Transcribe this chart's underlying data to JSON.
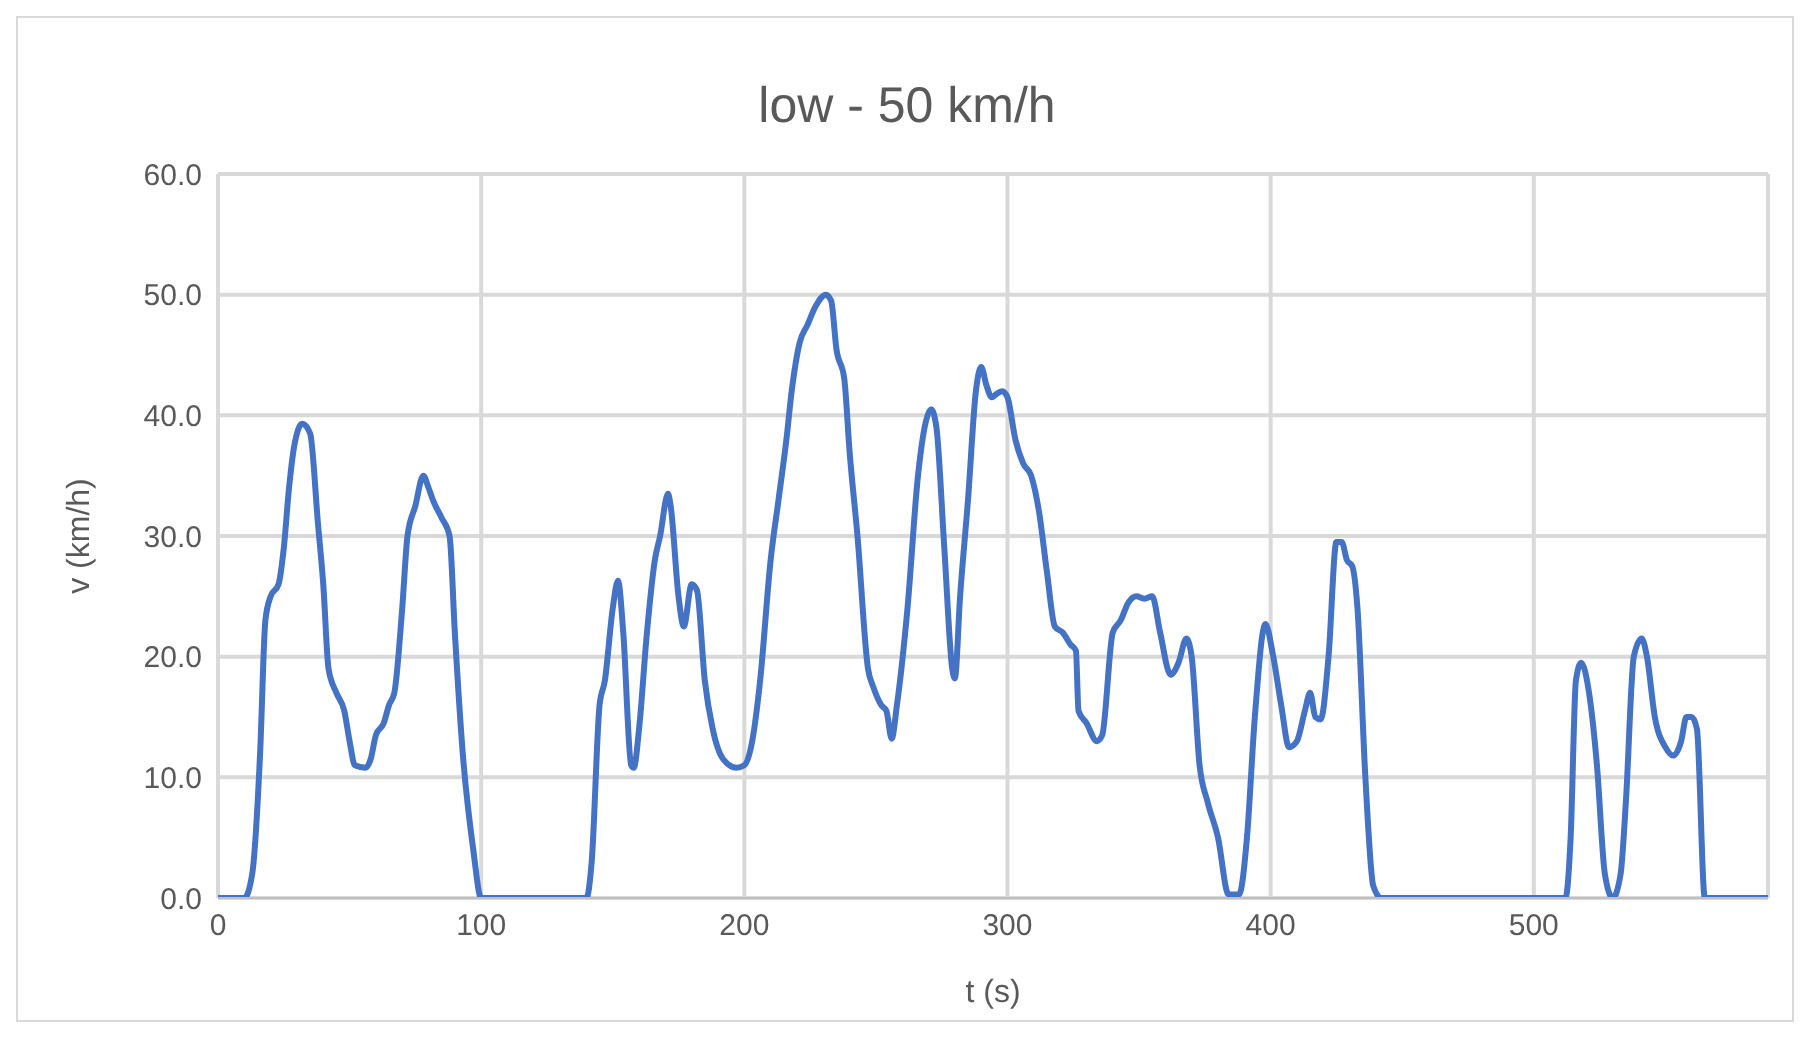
{
  "chart_data": {
    "type": "line",
    "title": "low - 50 km/h",
    "xlabel": "t (s)",
    "ylabel": "v (km/h)",
    "x": [
      0,
      10,
      13,
      16,
      18,
      20,
      23,
      25,
      27,
      29,
      32,
      35,
      38,
      40,
      42,
      45,
      48,
      50,
      52,
      56,
      58,
      60,
      63,
      65,
      67,
      70,
      72,
      75,
      78,
      80,
      82,
      85,
      88,
      90,
      93,
      97,
      100,
      140,
      142,
      145,
      147,
      150,
      152,
      154,
      157,
      158,
      160,
      163,
      166,
      168,
      171,
      172,
      175,
      177,
      180,
      182,
      185,
      188,
      192,
      197,
      200,
      203,
      206,
      210,
      213,
      216,
      218,
      221,
      224,
      227,
      231,
      233,
      235,
      238,
      240,
      243,
      247,
      249,
      252,
      254,
      256,
      258,
      262,
      266,
      269,
      271,
      273,
      276,
      279,
      280,
      282,
      285,
      288,
      290,
      292,
      294,
      296,
      298,
      300,
      303,
      306,
      309,
      312,
      315,
      318,
      321,
      324,
      326,
      327,
      330,
      334,
      336,
      340,
      343,
      346,
      349,
      352,
      355,
      358,
      362,
      365,
      368,
      370,
      373,
      376,
      380,
      384,
      388,
      391,
      394,
      398,
      401,
      404,
      407,
      410,
      413,
      415,
      417,
      419,
      422,
      425,
      427,
      429,
      431,
      433,
      436,
      439,
      442,
      512,
      514,
      516,
      518,
      521,
      524,
      527,
      530,
      533,
      535,
      538,
      541,
      543,
      546,
      550,
      553,
      556,
      558,
      560,
      562,
      565,
      589
    ],
    "series": [
      {
        "color": "#4472c4",
        "values": [
          0,
          0,
          2,
          12,
          23,
          25,
          26,
          29,
          34,
          37.5,
          39.3,
          38.5,
          31,
          26,
          19,
          17,
          15.5,
          13,
          11,
          10.8,
          11.5,
          13.5,
          14.5,
          16,
          17,
          24,
          30,
          32.5,
          35,
          34,
          32.8,
          31.5,
          30,
          22,
          12,
          4,
          0,
          0,
          3,
          16,
          18,
          24,
          26.3,
          22,
          11,
          10.8,
          14,
          22,
          28,
          30,
          33.5,
          32.5,
          25,
          22.5,
          26,
          25.5,
          18,
          14,
          11.5,
          10.8,
          11,
          13,
          18,
          28,
          33,
          38,
          42,
          46,
          47.5,
          49,
          50,
          49.5,
          45.5,
          43,
          37,
          30,
          19,
          17.5,
          16,
          15.5,
          13.2,
          16,
          24,
          35,
          39.5,
          40.5,
          39,
          29,
          19,
          18.2,
          25,
          33,
          42,
          44,
          42.5,
          41.5,
          41.8,
          42,
          41.5,
          38,
          36,
          35,
          32,
          27,
          22.5,
          22,
          21,
          20.5,
          15.5,
          14.5,
          13,
          13.5,
          22,
          23,
          24.5,
          25,
          24.8,
          25,
          22,
          18.5,
          19.5,
          21.5,
          20,
          11,
          8,
          5,
          0.3,
          0.3,
          5,
          15,
          22.7,
          20,
          16,
          12.5,
          13,
          15.5,
          17,
          15,
          14.8,
          20,
          29.5,
          29.5,
          28,
          27.5,
          24,
          10,
          1,
          0,
          0,
          5,
          18,
          19.5,
          17,
          11,
          2,
          0,
          2,
          8,
          20,
          21.5,
          20,
          15,
          12.5,
          11.8,
          13,
          15,
          15,
          14,
          0,
          0
        ]
      }
    ],
    "xlim": [
      0,
      589
    ],
    "xticks": [
      0,
      100,
      200,
      300,
      400,
      500
    ],
    "ylim": [
      0,
      60
    ],
    "yticks": [
      {
        "value": 0,
        "label": "0.0"
      },
      {
        "value": 10,
        "label": "10.0"
      },
      {
        "value": 20,
        "label": "20.0"
      },
      {
        "value": 30,
        "label": "30.0"
      },
      {
        "value": 40,
        "label": "40.0"
      },
      {
        "value": 50,
        "label": "50.0"
      },
      {
        "value": 60,
        "label": "60.0"
      }
    ],
    "grid": true,
    "marker": "none",
    "line_style": "solid"
  }
}
